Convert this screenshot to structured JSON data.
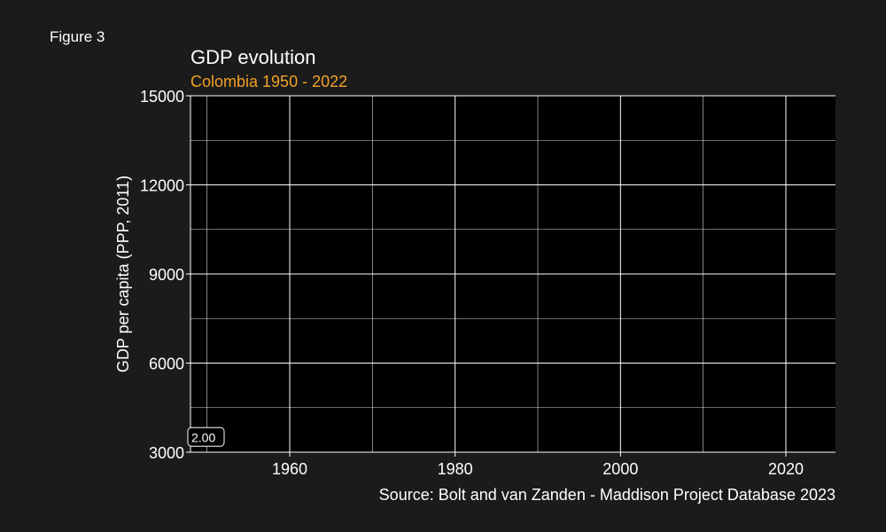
{
  "figure_label": "Figure 3",
  "chart_data": {
    "type": "line",
    "title": "GDP evolution",
    "subtitle": "Colombia 1950 - 2022",
    "ylabel": "GDP per capita (PPP, 2011)",
    "xlabel": "",
    "caption": "Source: Bolt and van Zanden - Maddison Project Database 2023",
    "xlim": [
      1948,
      2026
    ],
    "ylim": [
      3000,
      15000
    ],
    "x_ticks": [
      1960,
      1980,
      2000,
      2020
    ],
    "y_ticks": [
      3000,
      6000,
      9000,
      12000,
      15000
    ],
    "x_minor_grid": [
      1950,
      1970,
      1990,
      2010
    ],
    "y_minor_grid": [
      4500,
      7500,
      10500,
      13500
    ],
    "grid": true,
    "series": [
      {
        "x": [],
        "y": []
      }
    ],
    "annotations": [
      {
        "text": "2.00",
        "x": 1948,
        "y": 3500
      }
    ]
  },
  "colors": {
    "background": "#1b1b1b",
    "panel": "#000000",
    "grid": "#ffffff",
    "text": "#ffffff",
    "subtitle": "#f2a126",
    "line": "#f2a126"
  }
}
